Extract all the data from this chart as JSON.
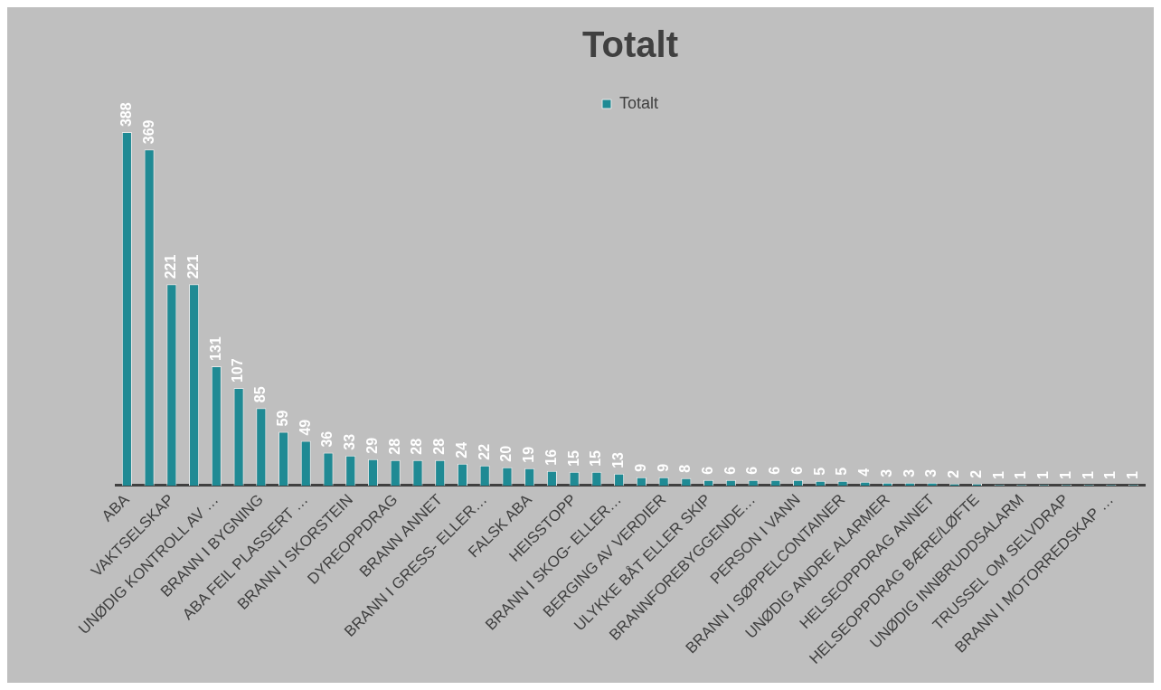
{
  "chart_data": {
    "type": "bar",
    "title": "Totalt",
    "categories": [
      "ABA",
      null,
      "VAKTSELSKAP",
      null,
      "UNØDIG KONTROLL AV …",
      null,
      "BRANN I BYGNING",
      null,
      "ABA FEIL PLASSERT …",
      null,
      "BRANN I SKORSTEIN",
      null,
      "DYREOPPDRAG",
      null,
      "BRANN ANNET",
      null,
      "BRANN I GRESS- ELLER…",
      null,
      "FALSK ABA",
      null,
      "HEISSTOPP",
      null,
      "BRANN I SKOG- ELLER…",
      null,
      "BERGING AV VERDIER",
      null,
      "ULYKKE BÅT ELLER SKIP",
      null,
      "BRANNFOREBYGGENDE…",
      null,
      "PERSON I VANN",
      null,
      "BRANN I SØPPELCONTAINER",
      null,
      "UNØDIG ANDRE ALARMER",
      null,
      "HELSEOPPDRAG ANNET",
      null,
      "HELSEOPPDRAG BÆRE/LØFTE",
      null,
      "UNØDIG INNBRUDDSALARM",
      null,
      "TRUSSEL OM SELVDRAP",
      null,
      "BRANN I MOTORREDSKAP …",
      null
    ],
    "series": [
      {
        "name": "Totalt",
        "color": "#1f8a94",
        "values": [
          388,
          369,
          221,
          221,
          131,
          107,
          85,
          59,
          49,
          36,
          33,
          29,
          28,
          28,
          28,
          24,
          22,
          20,
          19,
          16,
          15,
          15,
          13,
          9,
          9,
          8,
          6,
          6,
          6,
          6,
          6,
          5,
          5,
          4,
          3,
          3,
          3,
          2,
          2,
          1,
          1,
          1,
          1,
          1,
          1,
          1
        ]
      }
    ],
    "data_labels": true,
    "legend": "top",
    "grid": false
  }
}
